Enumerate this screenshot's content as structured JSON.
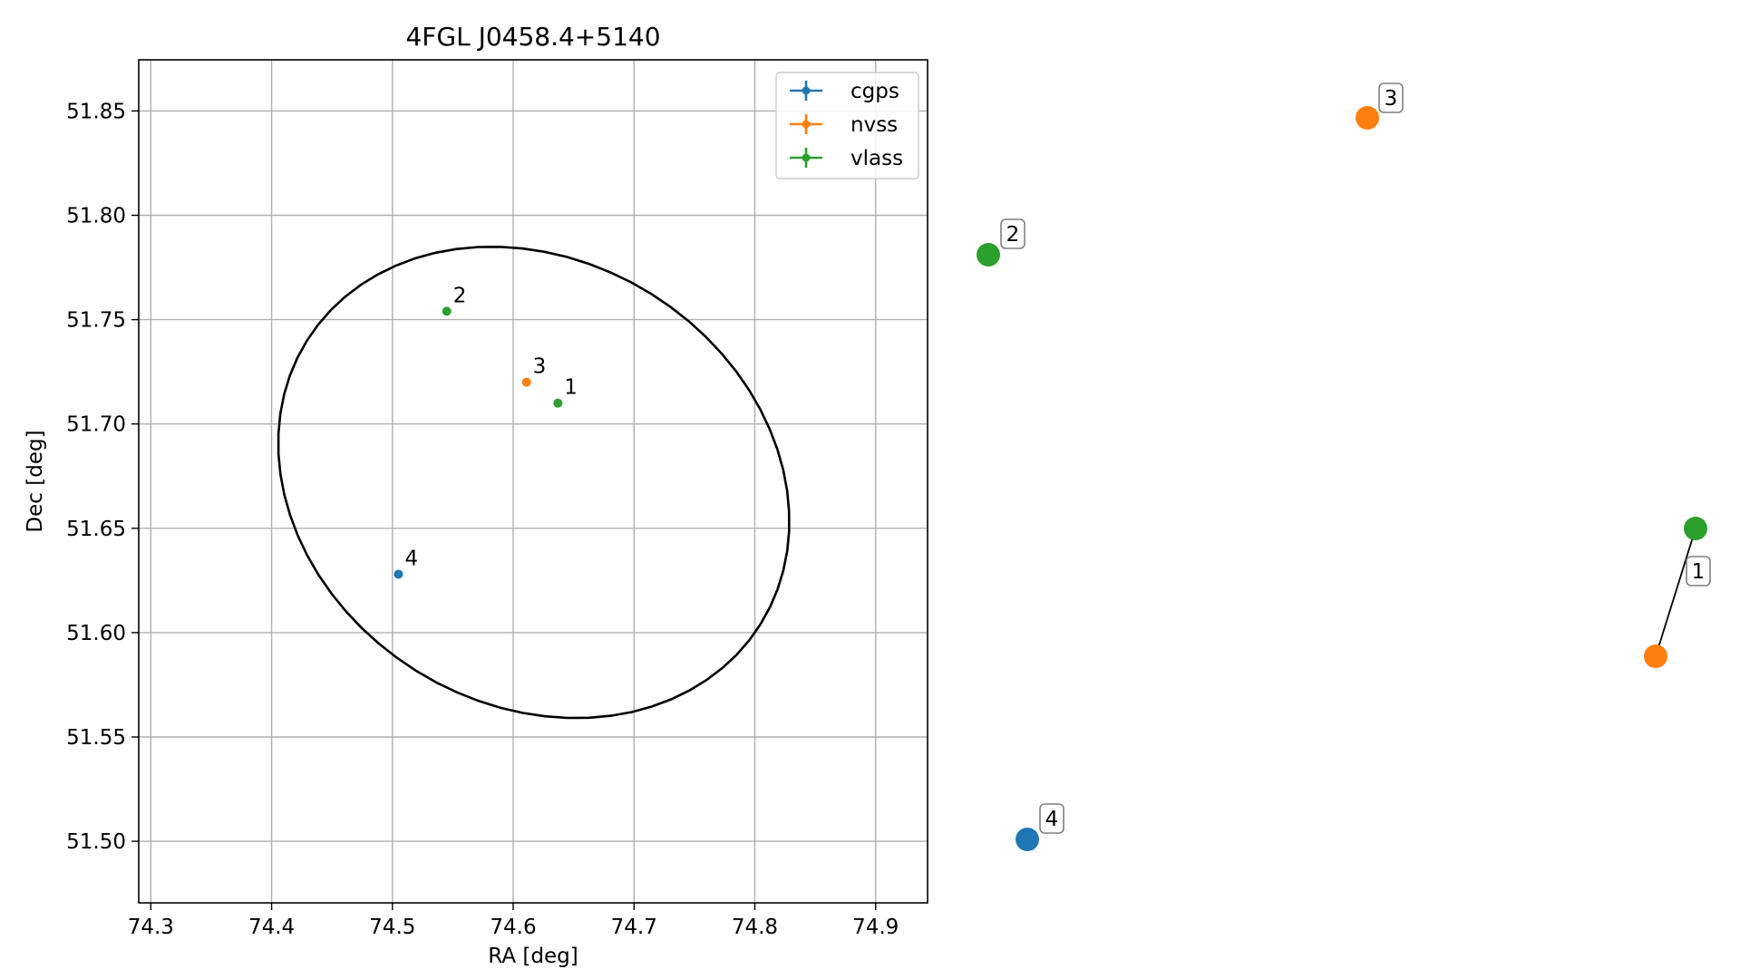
{
  "chart_data": {
    "type": "scatter",
    "title": "4FGL J0458.4+5140",
    "xlabel": "RA [deg]",
    "ylabel": "Dec [deg]",
    "xlim": [
      74.29,
      74.943
    ],
    "ylim": [
      51.4705,
      51.8745
    ],
    "x_ticks": [
      "74.3",
      "74.4",
      "74.5",
      "74.6",
      "74.7",
      "74.8",
      "74.9"
    ],
    "y_ticks": [
      "51.50",
      "51.55",
      "51.60",
      "51.65",
      "51.70",
      "51.75",
      "51.80",
      "51.85"
    ],
    "grid": true,
    "legend_position": "top-right",
    "series": [
      {
        "name": "cgps",
        "color": "#1f77b4",
        "points": [
          {
            "label": "4",
            "x": 74.505,
            "y": 51.628
          }
        ]
      },
      {
        "name": "nvss",
        "color": "#ff7f0e",
        "points": [
          {
            "label": "3",
            "x": 74.611,
            "y": 51.72
          }
        ]
      },
      {
        "name": "vlass",
        "color": "#2ca02c",
        "points": [
          {
            "label": "2",
            "x": 74.545,
            "y": 51.754
          },
          {
            "label": "1",
            "x": 74.637,
            "y": 51.71
          }
        ]
      }
    ],
    "ellipse": {
      "center_x": 74.617,
      "center_y": 51.672,
      "color": "#000000"
    },
    "side_panel": {
      "markers": [
        {
          "label": "3",
          "color": "#ff7f0e"
        },
        {
          "label": "2",
          "color": "#2ca02c"
        },
        {
          "label": "1",
          "color": "#2ca02c"
        },
        {
          "label": "1",
          "color": "#ff7f0e"
        },
        {
          "label": "4",
          "color": "#1f77b4"
        }
      ]
    }
  }
}
